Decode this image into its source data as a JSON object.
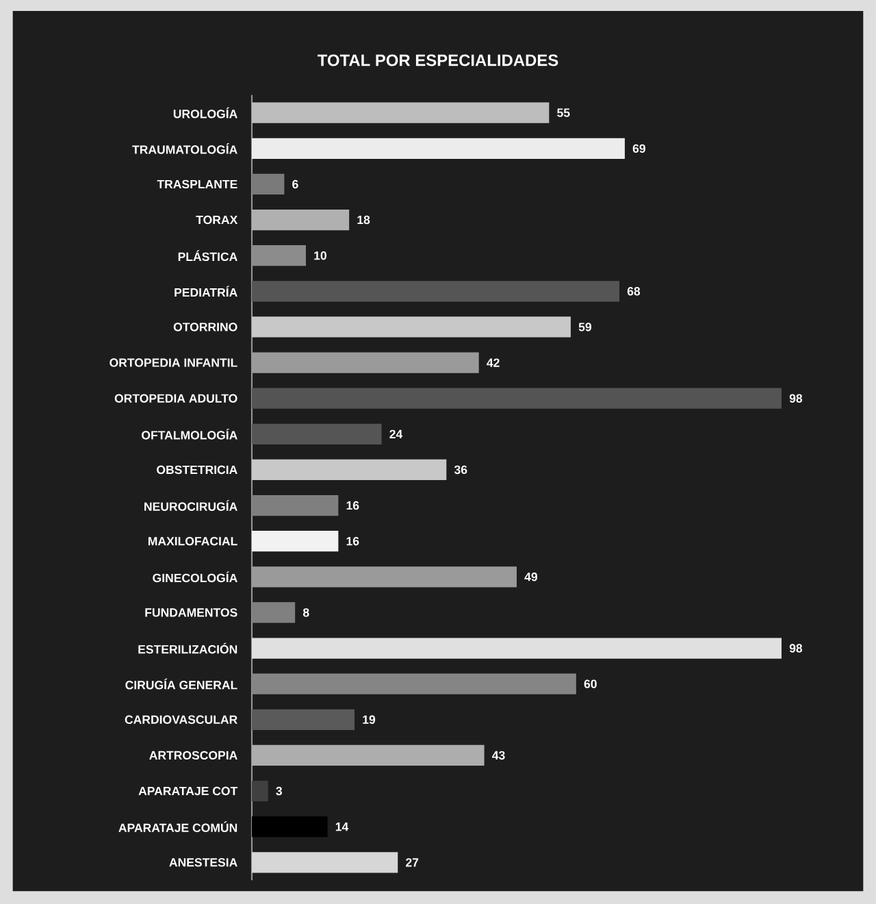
{
  "chart_data": {
    "type": "bar",
    "orientation": "horizontal",
    "title": "TOTAL POR ESPECIALIDADES",
    "categories": [
      "UROLOGÍA",
      "TRAUMATOLOGÍA",
      "TRASPLANTE",
      "TORAX",
      "PLÁSTICA",
      "PEDIATRÍA",
      "OTORRINO",
      "ORTOPEDIA INFANTIL",
      "ORTOPEDIA ADULTO",
      "OFTALMOLOGÍA",
      "OBSTETRICIA",
      "NEUROCIRUGÍA",
      "MAXILOFACIAL",
      "GINECOLOGÍA",
      "FUNDAMENTOS",
      "ESTERILIZACIÓN",
      "CIRUGÍA GENERAL",
      "CARDIOVASCULAR",
      "ARTROSCOPIA",
      "APARATAJE COT",
      "APARATAJE COMÚN",
      "ANESTESIA"
    ],
    "values": [
      55,
      69,
      6,
      18,
      10,
      68,
      59,
      42,
      98,
      24,
      36,
      16,
      16,
      49,
      8,
      98,
      60,
      19,
      43,
      3,
      14,
      27
    ],
    "colors": [
      "#bdbdbd",
      "#ececec",
      "#7a7a7a",
      "#b0b0b0",
      "#8c8c8c",
      "#555555",
      "#c8c8c8",
      "#9a9a9a",
      "#545454",
      "#555555",
      "#c8c8c8",
      "#7f7f7f",
      "#f2f2f2",
      "#9a9a9a",
      "#808080",
      "#e0e0e0",
      "#858585",
      "#5a5a5a",
      "#adadad",
      "#404040",
      "#000000",
      "#d6d6d6"
    ],
    "data_labels": true
  }
}
